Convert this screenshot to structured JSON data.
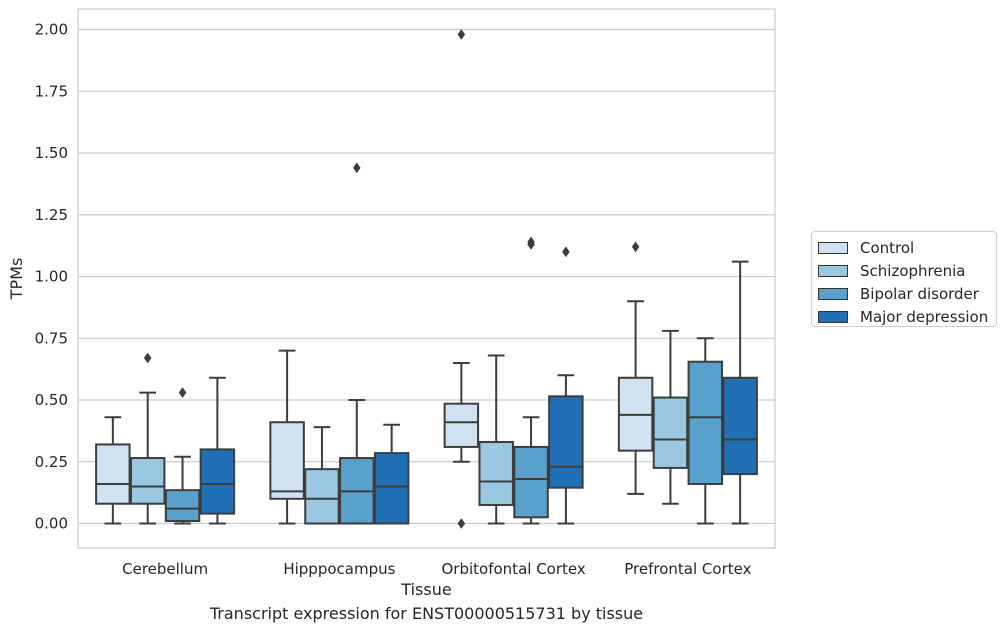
{
  "chart_data": {
    "type": "box",
    "title": "",
    "caption": "Transcript expression for ENST00000515731 by tissue",
    "xlabel": "Tissue",
    "ylabel": "TPMs",
    "ylim": [
      -0.1,
      2.08
    ],
    "yticks": [
      "0.00",
      "0.25",
      "0.50",
      "0.75",
      "1.00",
      "1.25",
      "1.50",
      "1.75",
      "2.00"
    ],
    "categories": [
      "Cerebellum",
      "Hipppocampus",
      "Orbitofontal Cortex",
      "Prefrontal Cortex"
    ],
    "grid": "horizontal",
    "legend_position": "right",
    "series": [
      {
        "name": "Control",
        "color": "#d0e1f2",
        "boxes": [
          {
            "whisker_low": 0.0,
            "q1": 0.08,
            "median": 0.16,
            "q3": 0.32,
            "whisker_high": 0.43,
            "outliers": []
          },
          {
            "whisker_low": 0.0,
            "q1": 0.1,
            "median": 0.13,
            "q3": 0.41,
            "whisker_high": 0.7,
            "outliers": []
          },
          {
            "whisker_low": 0.25,
            "q1": 0.31,
            "median": 0.41,
            "q3": 0.485,
            "whisker_high": 0.65,
            "outliers": [
              0.0,
              1.98
            ]
          },
          {
            "whisker_low": 0.12,
            "q1": 0.295,
            "median": 0.44,
            "q3": 0.59,
            "whisker_high": 0.9,
            "outliers": [
              1.12
            ]
          }
        ]
      },
      {
        "name": "Schizophrenia",
        "color": "#9ac8e0",
        "boxes": [
          {
            "whisker_low": 0.0,
            "q1": 0.08,
            "median": 0.15,
            "q3": 0.265,
            "whisker_high": 0.53,
            "outliers": [
              0.67
            ]
          },
          {
            "whisker_low": 0.0,
            "q1": 0.0,
            "median": 0.1,
            "q3": 0.22,
            "whisker_high": 0.39,
            "outliers": []
          },
          {
            "whisker_low": 0.0,
            "q1": 0.075,
            "median": 0.17,
            "q3": 0.33,
            "whisker_high": 0.68,
            "outliers": []
          },
          {
            "whisker_low": 0.08,
            "q1": 0.225,
            "median": 0.34,
            "q3": 0.51,
            "whisker_high": 0.78,
            "outliers": []
          }
        ]
      },
      {
        "name": "Bipolar disorder",
        "color": "#5aa0cd",
        "boxes": [
          {
            "whisker_low": 0.0,
            "q1": 0.01,
            "median": 0.06,
            "q3": 0.135,
            "whisker_high": 0.27,
            "outliers": [
              0.53
            ]
          },
          {
            "whisker_low": 0.0,
            "q1": 0.0,
            "median": 0.13,
            "q3": 0.265,
            "whisker_high": 0.5,
            "outliers": [
              1.44
            ]
          },
          {
            "whisker_low": 0.0,
            "q1": 0.025,
            "median": 0.18,
            "q3": 0.31,
            "whisker_high": 0.43,
            "outliers": [
              1.13,
              1.14
            ]
          },
          {
            "whisker_low": 0.0,
            "q1": 0.16,
            "median": 0.43,
            "q3": 0.655,
            "whisker_high": 0.75,
            "outliers": []
          }
        ]
      },
      {
        "name": "Major depression",
        "color": "#2170b5",
        "boxes": [
          {
            "whisker_low": 0.0,
            "q1": 0.04,
            "median": 0.16,
            "q3": 0.3,
            "whisker_high": 0.59,
            "outliers": []
          },
          {
            "whisker_low": 0.0,
            "q1": 0.0,
            "median": 0.15,
            "q3": 0.285,
            "whisker_high": 0.4,
            "outliers": []
          },
          {
            "whisker_low": 0.0,
            "q1": 0.145,
            "median": 0.23,
            "q3": 0.515,
            "whisker_high": 0.6,
            "outliers": [
              1.1
            ]
          },
          {
            "whisker_low": 0.0,
            "q1": 0.2,
            "median": 0.34,
            "q3": 0.59,
            "whisker_high": 1.06,
            "outliers": []
          }
        ]
      }
    ]
  }
}
